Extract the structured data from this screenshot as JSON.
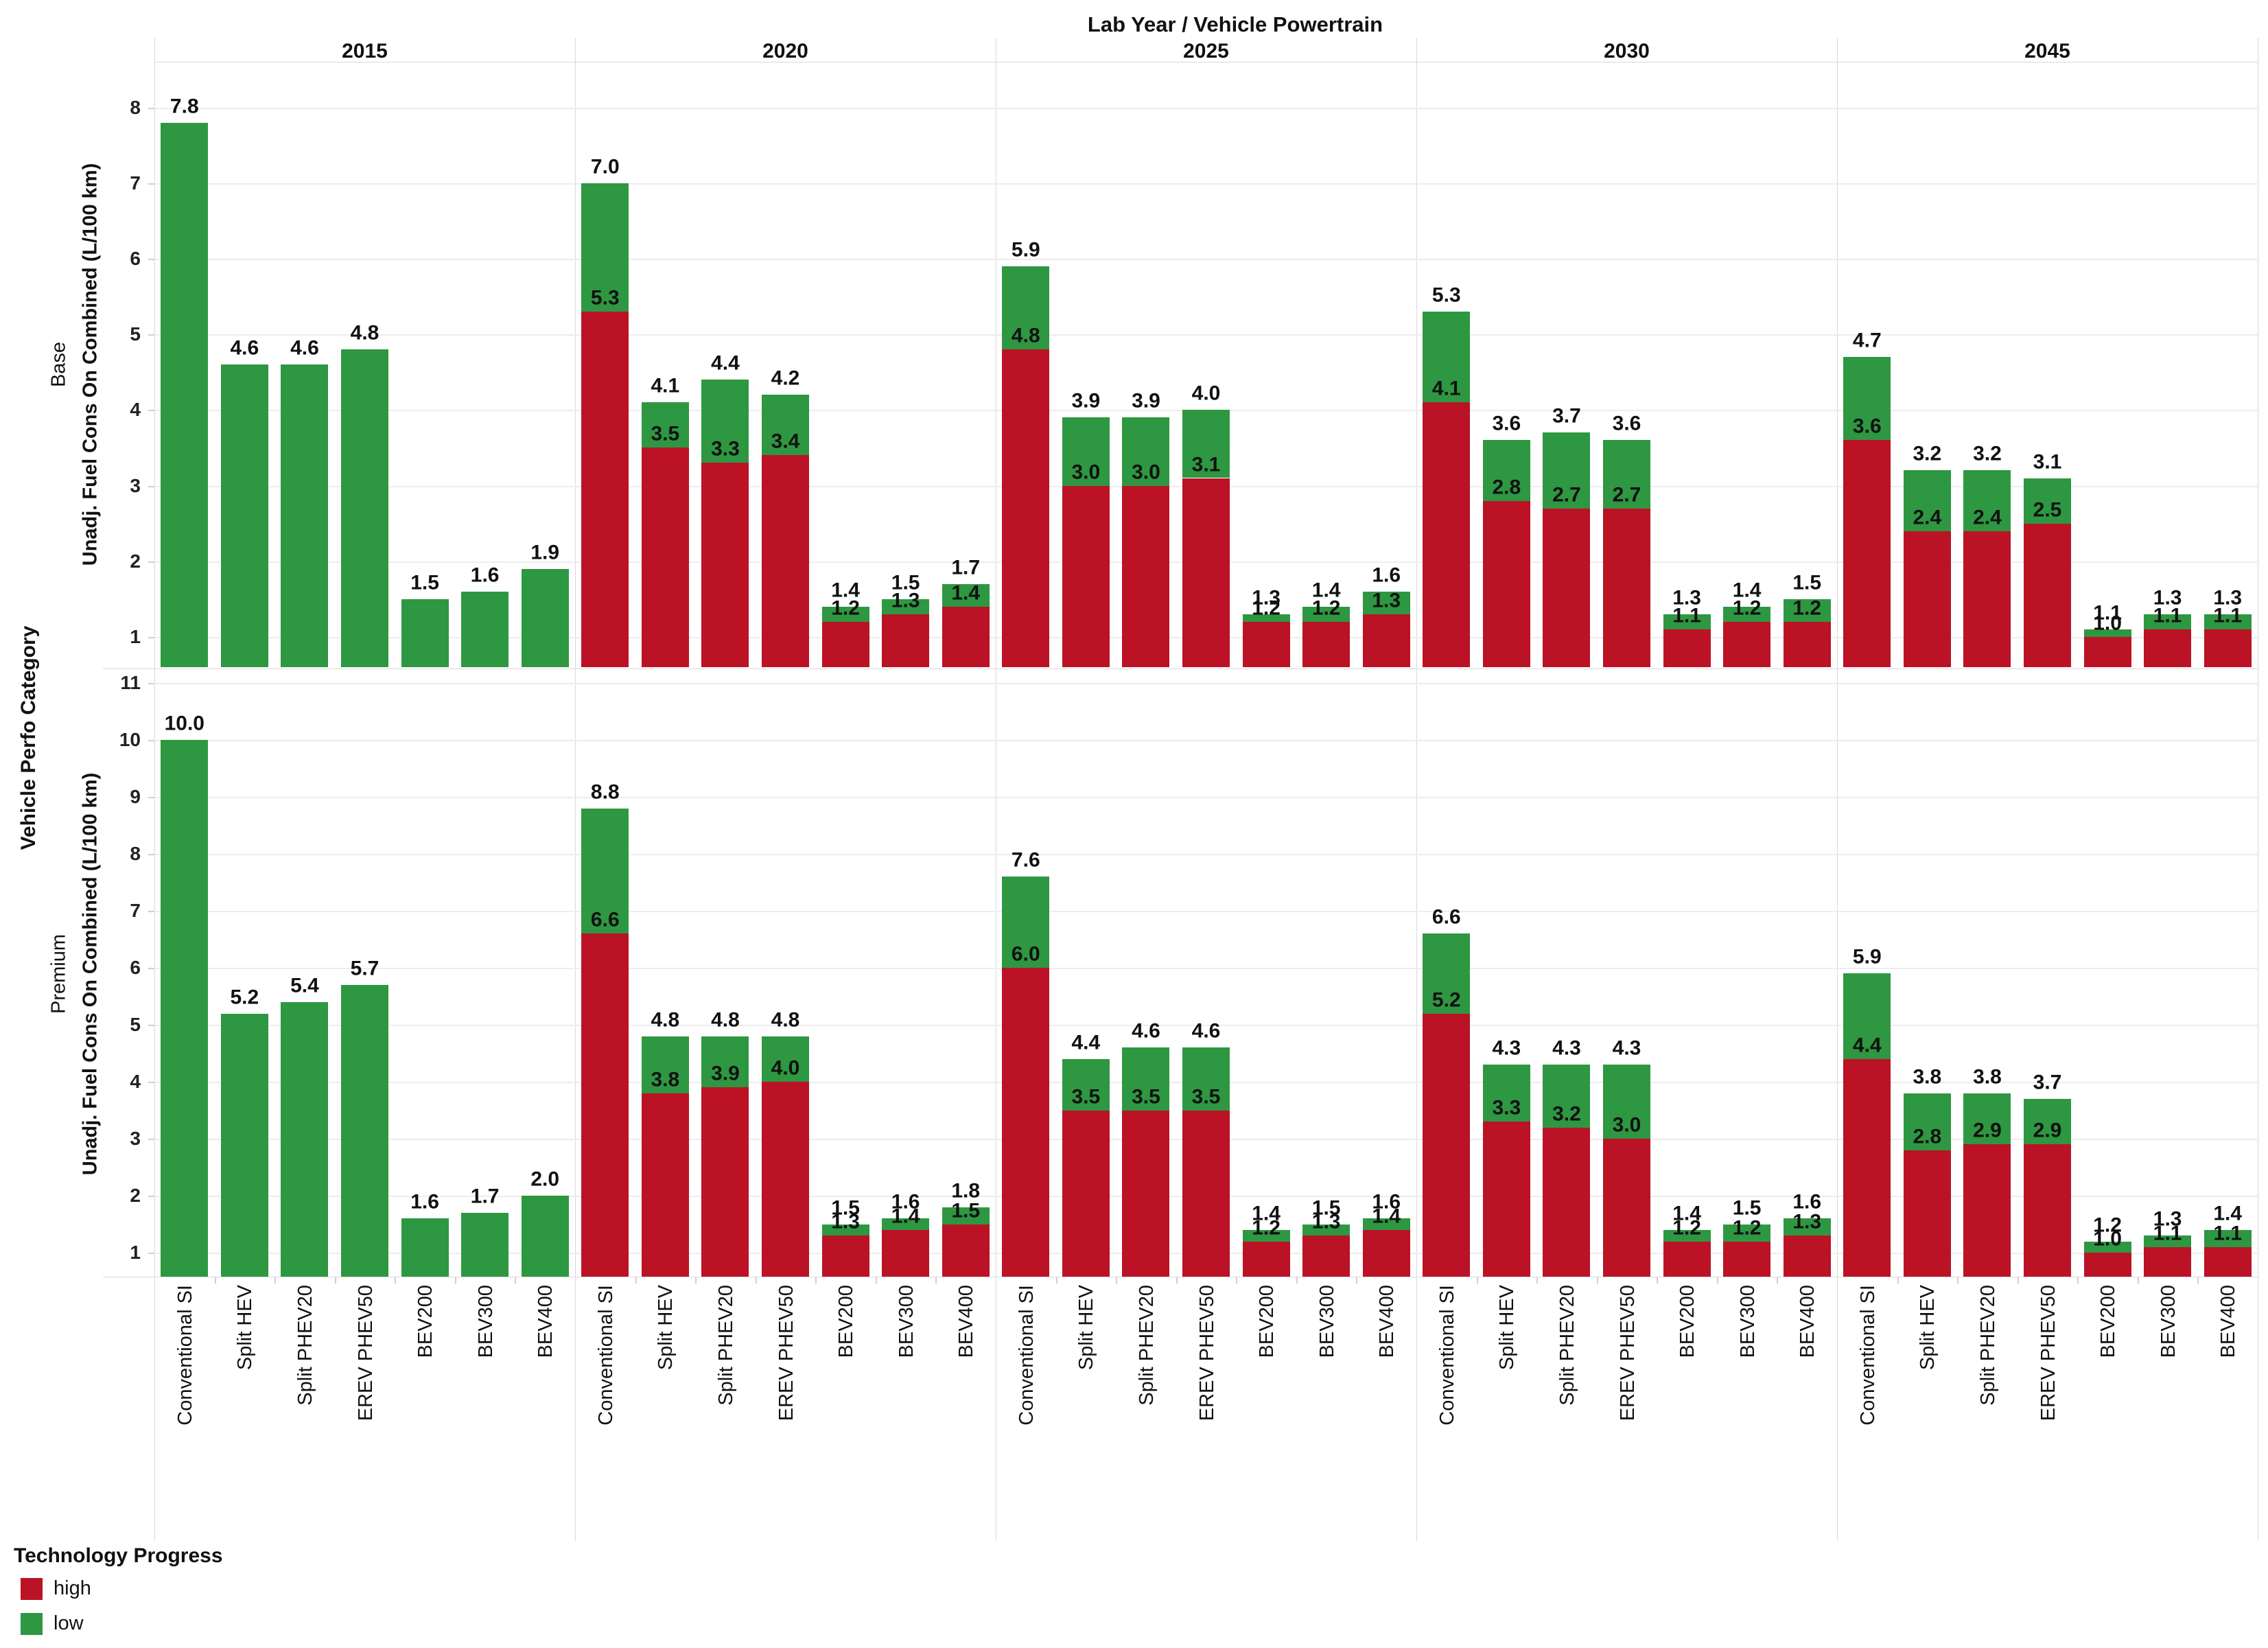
{
  "chart_data": {
    "type": "bar",
    "stacked": true,
    "title": "Lab Year / Vehicle Powertrain",
    "row_dimension_title": "Vehicle Perfo Category",
    "value_axis_title": "Unadj. Fuel Cons On Combined (L/100 km)",
    "legend": {
      "title": "Technology Progress",
      "items": [
        {
          "key": "high",
          "label": "high"
        },
        {
          "key": "low",
          "label": "low"
        }
      ]
    },
    "colors": {
      "high": "#bb1226",
      "low": "#2e9741"
    },
    "years": [
      "2015",
      "2020",
      "2025",
      "2030",
      "2045"
    ],
    "powertrains": [
      "Conventional SI",
      "Split HEV",
      "Split PHEV20",
      "EREV PHEV50",
      "BEV200",
      "BEV300",
      "BEV400"
    ],
    "grid": true,
    "rows": [
      {
        "label": "Base",
        "y_ticks": [
          1,
          2,
          3,
          4,
          5,
          6,
          7,
          8
        ],
        "panels": [
          {
            "year": "2015",
            "bars": [
              {
                "low": 7.8,
                "high": null
              },
              {
                "low": 4.6,
                "high": null
              },
              {
                "low": 4.6,
                "high": null
              },
              {
                "low": 4.8,
                "high": null
              },
              {
                "low": 1.5,
                "high": null
              },
              {
                "low": 1.6,
                "high": null
              },
              {
                "low": 1.9,
                "high": null
              }
            ]
          },
          {
            "year": "2020",
            "bars": [
              {
                "low": 7.0,
                "high": 5.3
              },
              {
                "low": 4.1,
                "high": 3.5
              },
              {
                "low": 4.4,
                "high": 3.3
              },
              {
                "low": 4.2,
                "high": 3.4
              },
              {
                "low": 1.4,
                "high": 1.2
              },
              {
                "low": 1.5,
                "high": 1.3
              },
              {
                "low": 1.7,
                "high": 1.4
              }
            ]
          },
          {
            "year": "2025",
            "bars": [
              {
                "low": 5.9,
                "high": 4.8
              },
              {
                "low": 3.9,
                "high": 3.0
              },
              {
                "low": 3.9,
                "high": 3.0
              },
              {
                "low": 4.0,
                "high": 3.1
              },
              {
                "low": 1.3,
                "high": 1.2
              },
              {
                "low": 1.4,
                "high": 1.2
              },
              {
                "low": 1.6,
                "high": 1.3
              }
            ]
          },
          {
            "year": "2030",
            "bars": [
              {
                "low": 5.3,
                "high": 4.1
              },
              {
                "low": 3.6,
                "high": 2.8
              },
              {
                "low": 3.7,
                "high": 2.7
              },
              {
                "low": 3.6,
                "high": 2.7
              },
              {
                "low": 1.3,
                "high": 1.1
              },
              {
                "low": 1.4,
                "high": 1.2
              },
              {
                "low": 1.5,
                "high": 1.2
              }
            ]
          },
          {
            "year": "2045",
            "bars": [
              {
                "low": 4.7,
                "high": 3.6
              },
              {
                "low": 3.2,
                "high": 2.4
              },
              {
                "low": 3.2,
                "high": 2.4
              },
              {
                "low": 3.1,
                "high": 2.5
              },
              {
                "low": 1.1,
                "high": 1.0
              },
              {
                "low": 1.3,
                "high": 1.1
              },
              {
                "low": 1.3,
                "high": 1.1
              }
            ]
          }
        ]
      },
      {
        "label": "Premium",
        "y_ticks": [
          1,
          2,
          3,
          4,
          5,
          6,
          7,
          8,
          9,
          10,
          11
        ],
        "panels": [
          {
            "year": "2015",
            "bars": [
              {
                "low": 10.0,
                "high": null
              },
              {
                "low": 5.2,
                "high": null
              },
              {
                "low": 5.4,
                "high": null
              },
              {
                "low": 5.7,
                "high": null
              },
              {
                "low": 1.6,
                "high": null
              },
              {
                "low": 1.7,
                "high": null
              },
              {
                "low": 2.0,
                "high": null
              }
            ]
          },
          {
            "year": "2020",
            "bars": [
              {
                "low": 8.8,
                "high": 6.6
              },
              {
                "low": 4.8,
                "high": 3.8
              },
              {
                "low": 4.8,
                "high": 3.9
              },
              {
                "low": 4.8,
                "high": 4.0
              },
              {
                "low": 1.5,
                "high": 1.3
              },
              {
                "low": 1.6,
                "high": 1.4
              },
              {
                "low": 1.8,
                "high": 1.5
              }
            ]
          },
          {
            "year": "2025",
            "bars": [
              {
                "low": 7.6,
                "high": 6.0
              },
              {
                "low": 4.4,
                "high": 3.5
              },
              {
                "low": 4.6,
                "high": 3.5
              },
              {
                "low": 4.6,
                "high": 3.5
              },
              {
                "low": 1.4,
                "high": 1.2
              },
              {
                "low": 1.5,
                "high": 1.3
              },
              {
                "low": 1.6,
                "high": 1.4
              }
            ]
          },
          {
            "year": "2030",
            "bars": [
              {
                "low": 6.6,
                "high": 5.2
              },
              {
                "low": 4.3,
                "high": 3.3
              },
              {
                "low": 4.3,
                "high": 3.2
              },
              {
                "low": 4.3,
                "high": 3.0
              },
              {
                "low": 1.4,
                "high": 1.2
              },
              {
                "low": 1.5,
                "high": 1.2
              },
              {
                "low": 1.6,
                "high": 1.3
              }
            ]
          },
          {
            "year": "2045",
            "bars": [
              {
                "low": 5.9,
                "high": 4.4
              },
              {
                "low": 3.8,
                "high": 2.8
              },
              {
                "low": 3.8,
                "high": 2.9
              },
              {
                "low": 3.7,
                "high": 2.9
              },
              {
                "low": 1.2,
                "high": 1.0
              },
              {
                "low": 1.3,
                "high": 1.1
              },
              {
                "low": 1.4,
                "high": 1.1
              }
            ]
          }
        ]
      }
    ]
  }
}
